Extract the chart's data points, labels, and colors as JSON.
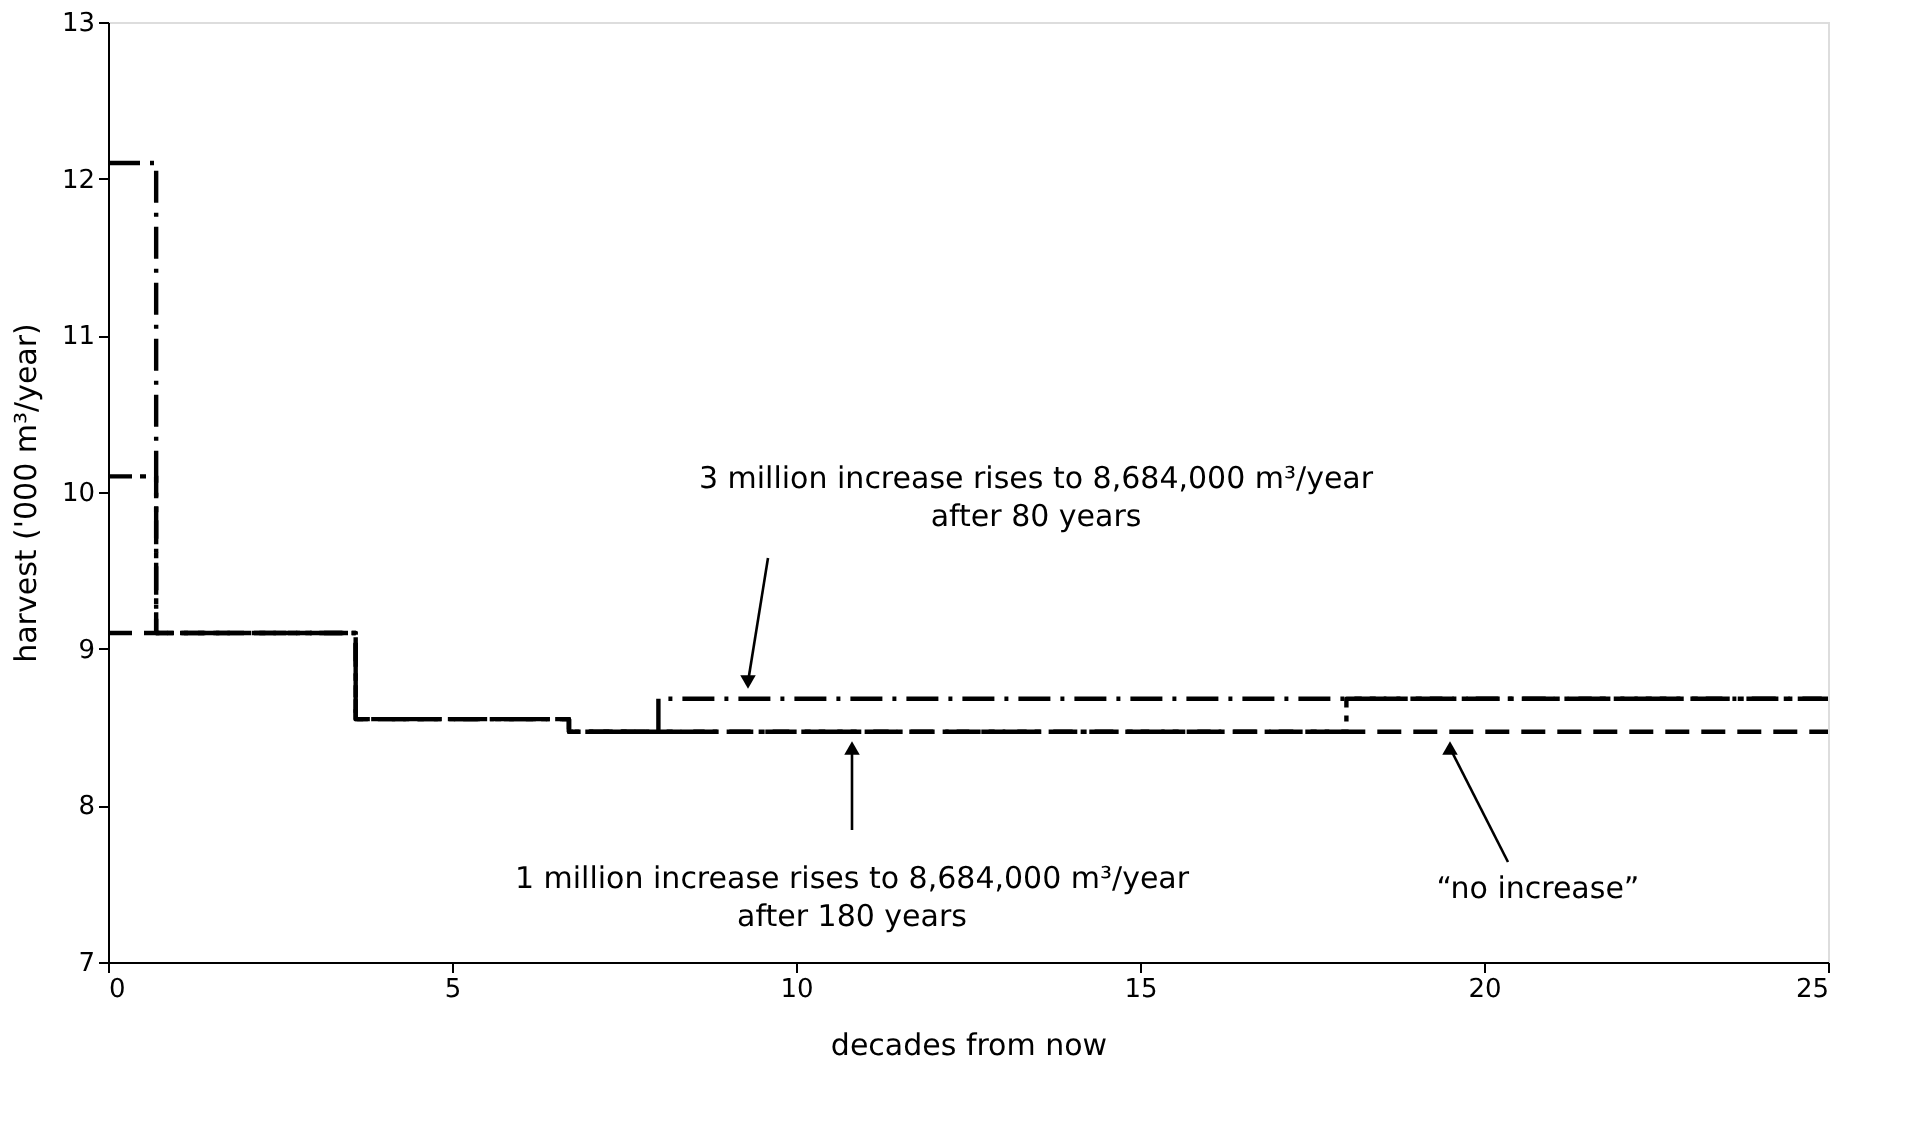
{
  "chart_data": {
    "type": "step",
    "xlabel": "decades from now",
    "ylabel": "harvest ('000 m³/year)",
    "xlim": [
      0,
      25
    ],
    "xticks": [
      0,
      5,
      10,
      15,
      20,
      25
    ],
    "ylim": [
      7,
      13
    ],
    "yticks": [
      7,
      8,
      9,
      10,
      11,
      12,
      13
    ],
    "grid": false,
    "line_style": "dashed",
    "series": [
      {
        "color": "#000000",
        "x": [
          0,
          0.7,
          3.6,
          6.7,
          8,
          25
        ],
        "values": [
          12.1,
          9.1,
          8.55,
          8.47,
          8.68,
          8.68
        ]
      },
      {
        "color": "#000000",
        "x": [
          0,
          0.7,
          3.6,
          6.7,
          18,
          25
        ],
        "values": [
          10.1,
          9.1,
          8.55,
          8.47,
          8.68,
          8.68
        ]
      },
      {
        "color": "#000000",
        "x": [
          0,
          3.6,
          6.7,
          25
        ],
        "values": [
          9.1,
          8.55,
          8.47,
          8.47
        ]
      }
    ],
    "annotations": [
      "3 million increase rises to 8,684,000 m³/year\nafter 80 years",
      "1 million increase rises to 8,684,000 m³/year\nafter 180 years",
      "“no increase”"
    ]
  }
}
